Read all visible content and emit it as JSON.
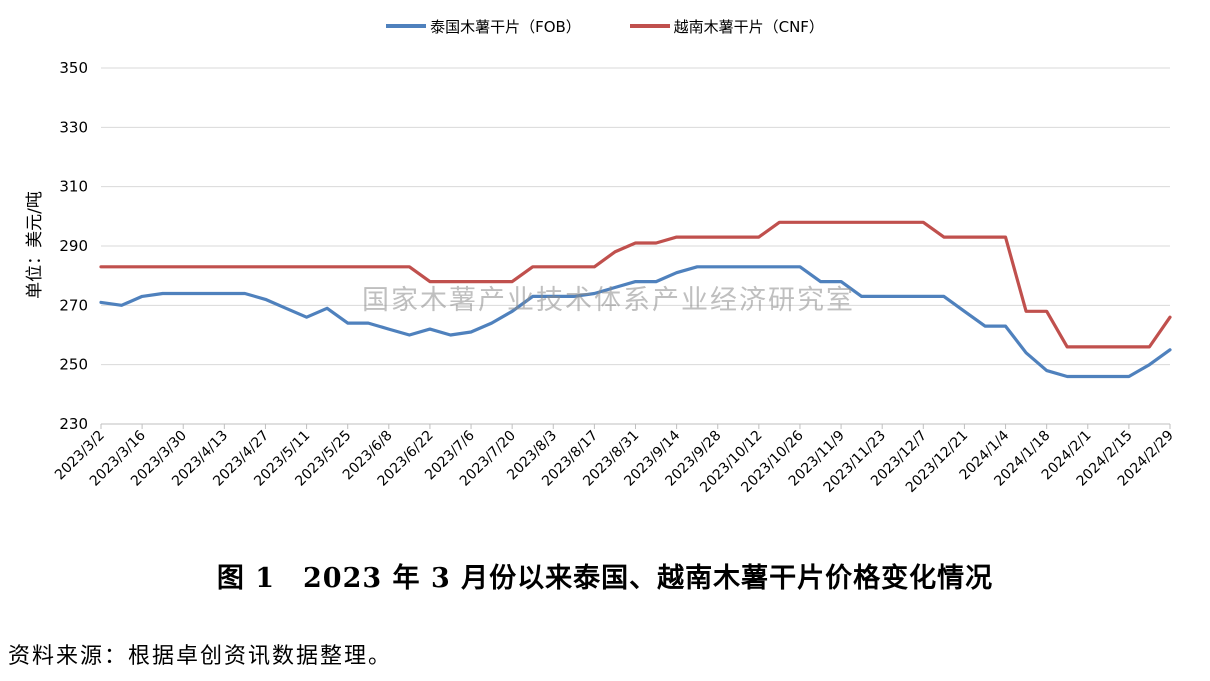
{
  "chart_data": {
    "type": "line",
    "ylabel": "单位：美元/吨",
    "xlabel": "",
    "ylim": [
      230,
      350
    ],
    "yticks": [
      230,
      250,
      270,
      290,
      310,
      330,
      350
    ],
    "grid": "horizontal",
    "legend": "top-center",
    "x": [
      "2023/3/2",
      "2023/3/9",
      "2023/3/16",
      "2023/3/23",
      "2023/3/30",
      "2023/4/6",
      "2023/4/13",
      "2023/4/20",
      "2023/4/27",
      "2023/5/4",
      "2023/5/11",
      "2023/5/18",
      "2023/5/25",
      "2023/6/1",
      "2023/6/8",
      "2023/6/15",
      "2023/6/22",
      "2023/6/29",
      "2023/7/6",
      "2023/7/13",
      "2023/7/20",
      "2023/7/27",
      "2023/8/3",
      "2023/8/10",
      "2023/8/17",
      "2023/8/24",
      "2023/8/31",
      "2023/9/7",
      "2023/9/14",
      "2023/9/21",
      "2023/9/28",
      "2023/10/5",
      "2023/10/12",
      "2023/10/19",
      "2023/10/26",
      "2023/11/2",
      "2023/11/9",
      "2023/11/16",
      "2023/11/23",
      "2023/11/30",
      "2023/12/7",
      "2023/12/14",
      "2023/12/21",
      "2023/12/28",
      "2024/1/4",
      "2024/1/11",
      "2024/1/18",
      "2024/1/25",
      "2024/2/1",
      "2024/2/8",
      "2024/2/15",
      "2024/2/22",
      "2024/2/29"
    ],
    "xtick_labels": [
      "2023/3/2",
      "2023/3/16",
      "2023/3/30",
      "2023/4/13",
      "2023/4/27",
      "2023/5/11",
      "2023/5/25",
      "2023/6/8",
      "2023/6/22",
      "2023/7/6",
      "2023/7/20",
      "2023/8/3",
      "2023/8/17",
      "2023/8/31",
      "2023/9/14",
      "2023/9/28",
      "2023/10/12",
      "2023/10/26",
      "2023/11/9",
      "2023/11/23",
      "2023/12/7",
      "2023/12/21",
      "2024/1/4",
      "2024/1/18",
      "2024/2/1",
      "2024/2/15",
      "2024/2/29"
    ],
    "series": [
      {
        "name": "泰国木薯干片（FOB）",
        "color": "#4f81bd",
        "values": [
          271,
          270,
          273,
          274,
          274,
          274,
          274,
          274,
          272,
          269,
          266,
          269,
          264,
          264,
          262,
          260,
          262,
          260,
          261,
          264,
          268,
          273,
          273,
          273,
          274,
          276,
          278,
          278,
          281,
          283,
          283,
          283,
          283,
          283,
          283,
          278,
          278,
          273,
          273,
          273,
          273,
          273,
          268,
          263,
          263,
          254,
          248,
          246,
          246,
          246,
          246,
          250,
          255
        ]
      },
      {
        "name": "越南木薯干片（CNF）",
        "color": "#c0504d",
        "values": [
          283,
          283,
          283,
          283,
          283,
          283,
          283,
          283,
          283,
          283,
          283,
          283,
          283,
          283,
          283,
          283,
          278,
          278,
          278,
          278,
          278,
          283,
          283,
          283,
          283,
          288,
          291,
          291,
          293,
          293,
          293,
          293,
          293,
          298,
          298,
          298,
          298,
          298,
          298,
          298,
          298,
          293,
          293,
          293,
          293,
          268,
          268,
          256,
          256,
          256,
          256,
          256,
          266
        ]
      }
    ]
  },
  "watermark": "国家木薯产业技术体系产业经济研究室",
  "caption": "图 1　2023 年 3 月份以来泰国、越南木薯干片价格变化情况",
  "source": "资料来源：根据卓创资讯数据整理。"
}
